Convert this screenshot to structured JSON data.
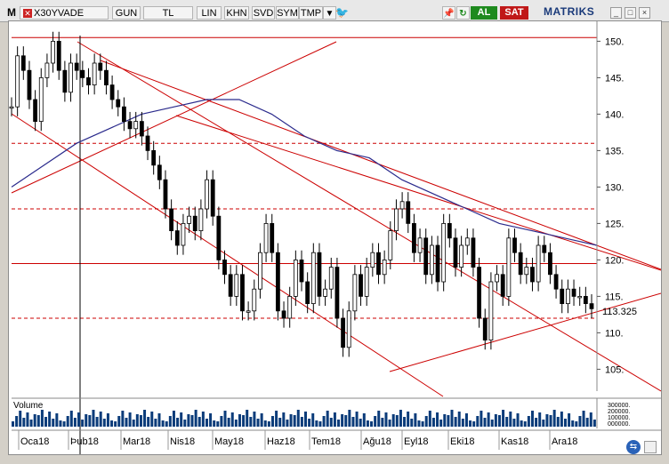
{
  "toolbar": {
    "m_label": "M",
    "symbol": "X30YVADE",
    "buttons": [
      "GUN",
      "TL",
      "LIN",
      "KHN",
      "SVD",
      "SYM",
      "TMP"
    ],
    "buy_label": "AL",
    "sell_label": "SAT",
    "brand": "MATRIKS"
  },
  "chart": {
    "last_price": "113.325",
    "volume_label": "Volume",
    "colors": {
      "price": "#000000",
      "moving_average": "#2a2a8c",
      "trend": "#cc0000",
      "volume": "#0b3c7a"
    }
  },
  "chart_data": {
    "type": "candlestick",
    "y_ticks": [
      "150.",
      "145.",
      "140.",
      "135.",
      "130.",
      "125.",
      "120.",
      "115.",
      "110.",
      "105."
    ],
    "ylim": [
      102,
      152
    ],
    "x_tick_labels": [
      "Oca18",
      "Þub18",
      "Mar18",
      "Nis18",
      "May18",
      "Haz18",
      "Tem18",
      "Ağu18",
      "Eyl18",
      "Eki18",
      "Kas18",
      "Ara18"
    ],
    "horizontal_levels": [
      {
        "value": 150.5,
        "style": "solid"
      },
      {
        "value": 136,
        "style": "dashed"
      },
      {
        "value": 127,
        "style": "dashed"
      },
      {
        "value": 119.5,
        "style": "solid"
      },
      {
        "value": 112,
        "style": "dashed"
      }
    ],
    "close_series": [
      141,
      148,
      146,
      142,
      139,
      145,
      147,
      150,
      146,
      143,
      147,
      146,
      145,
      144,
      147,
      146,
      144,
      142,
      141,
      139,
      138,
      139,
      137,
      135,
      133,
      131,
      127,
      124,
      122,
      125,
      126,
      124,
      127,
      131,
      126,
      120,
      118,
      115,
      118,
      113,
      113,
      116,
      121,
      125,
      121,
      113,
      112,
      115,
      120,
      117,
      114,
      121,
      115,
      116,
      119,
      112,
      108,
      113,
      118,
      115,
      119,
      121,
      118,
      120,
      124,
      127,
      128,
      125,
      121,
      123,
      118,
      122,
      117,
      125,
      123,
      119,
      122,
      123,
      119,
      112,
      109,
      117,
      118,
      115,
      123,
      121,
      118,
      119,
      117,
      122,
      121,
      118,
      116,
      114,
      116,
      115,
      115,
      114,
      113.3
    ],
    "moving_average": [
      130,
      133,
      136,
      138,
      140,
      141,
      142,
      142,
      140,
      137,
      135,
      134,
      131,
      129,
      127,
      125,
      124,
      123,
      122
    ],
    "volume_axis_labels": [
      "300000.",
      "200000.",
      "100000.",
      "000000."
    ]
  }
}
